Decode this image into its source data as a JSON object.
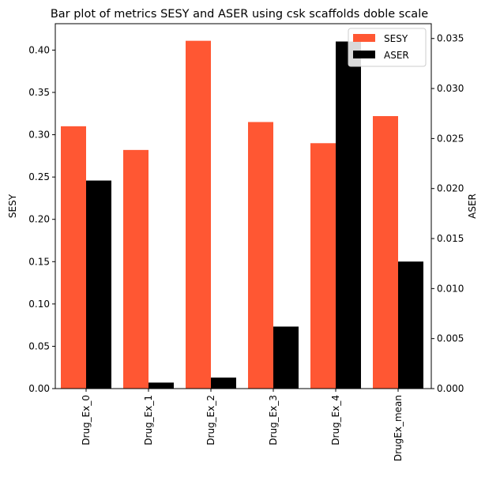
{
  "chart_data": {
    "type": "bar",
    "title": "Bar plot of metrics SESY and ASER using csk scaffolds doble scale",
    "categories": [
      "Drug_Ex_0",
      "Drug_Ex_1",
      "Drug_Ex_2",
      "Drug_Ex_3",
      "Drug_Ex_4",
      "DrugEx_mean"
    ],
    "series": [
      {
        "name": "SESY",
        "axis": "left",
        "color": "#ff5733",
        "values": [
          0.31,
          0.282,
          0.411,
          0.315,
          0.29,
          0.322
        ]
      },
      {
        "name": "ASER",
        "axis": "right",
        "color": "#000000",
        "values": [
          0.0208,
          0.0006,
          0.0011,
          0.0062,
          0.0347,
          0.0127
        ]
      }
    ],
    "ylabel": "SESY",
    "y2label": "ASER",
    "ylim": [
      0,
      0.4312
    ],
    "y2lim": [
      0,
      0.03648
    ],
    "yticks": [
      "0.00",
      "0.05",
      "0.10",
      "0.15",
      "0.20",
      "0.25",
      "0.30",
      "0.35",
      "0.40"
    ],
    "y2ticks": [
      "0.000",
      "0.005",
      "0.010",
      "0.015",
      "0.020",
      "0.025",
      "0.030",
      "0.035"
    ],
    "legend_position": "top-right",
    "grid": false
  }
}
